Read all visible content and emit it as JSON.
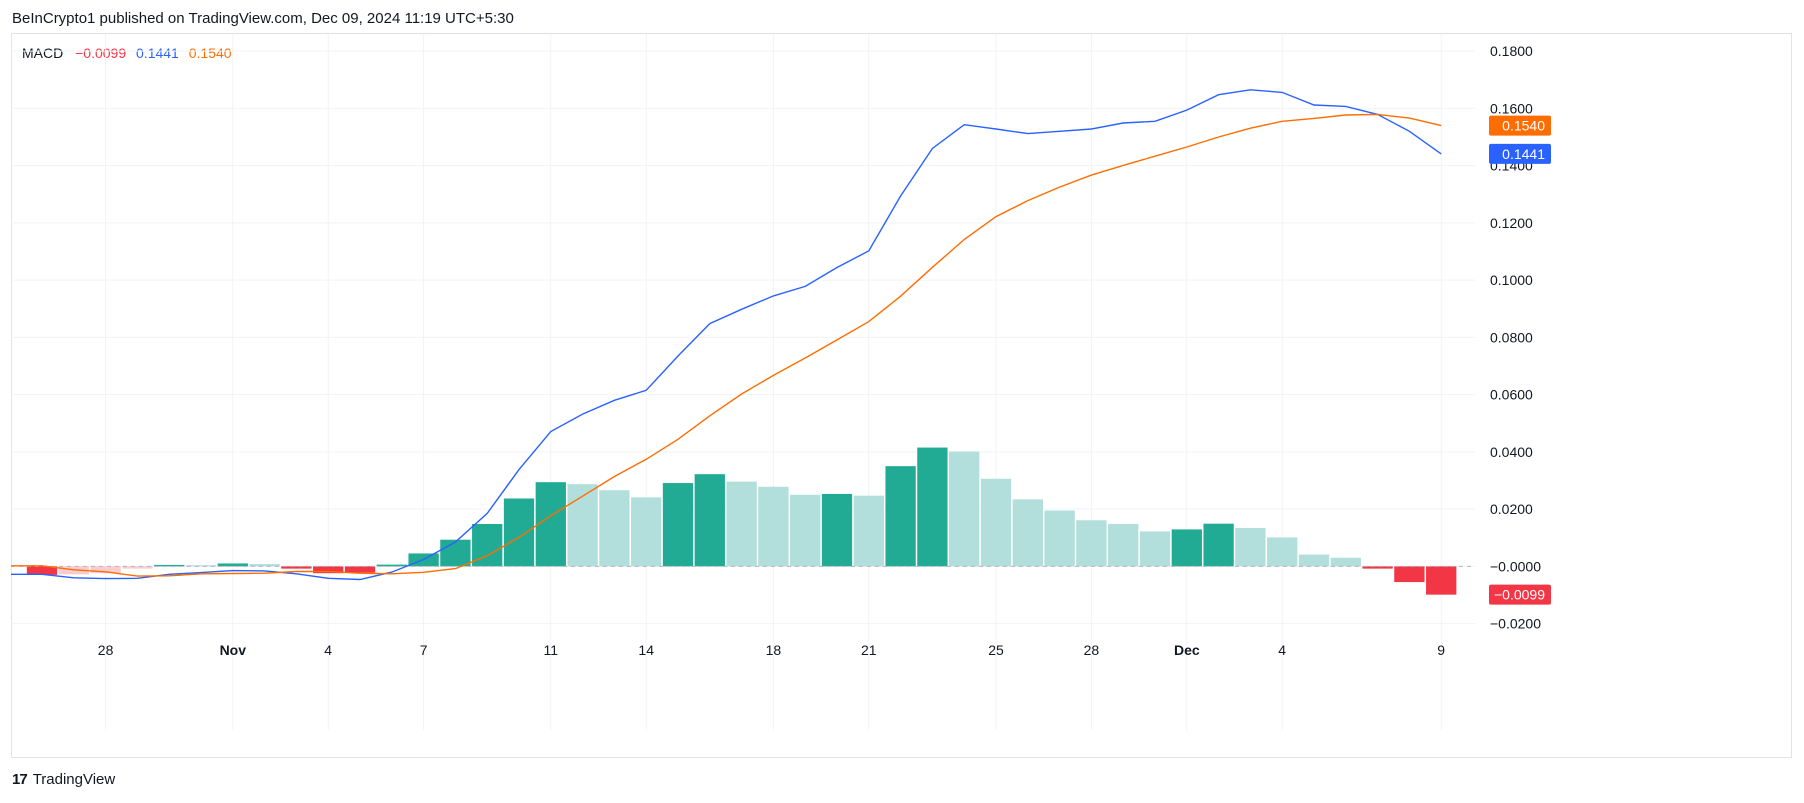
{
  "header": {
    "published": "BeInCrypto1 published on TradingView.com, Dec 09, 2024 11:19 UTC+5:30"
  },
  "legend": {
    "name": "MACD",
    "hist_value": "−0.0099",
    "macd_value": "0.1441",
    "signal_value": "0.1540",
    "hist_color": "#f23645",
    "macd_color": "#2962ff",
    "signal_color": "#ff6d00"
  },
  "footer": {
    "brand": "TradingView",
    "logo_text": "17"
  },
  "chart_data": {
    "type": "bar",
    "title": "",
    "y_ticks": [
      {
        "value": 0.18,
        "label": "0.1800"
      },
      {
        "value": 0.16,
        "label": "0.1600"
      },
      {
        "value": 0.14,
        "label": "0.1400"
      },
      {
        "value": 0.12,
        "label": "0.1200"
      },
      {
        "value": 0.1,
        "label": "0.1000"
      },
      {
        "value": 0.08,
        "label": "0.0800"
      },
      {
        "value": 0.06,
        "label": "0.0600"
      },
      {
        "value": 0.04,
        "label": "0.0400"
      },
      {
        "value": 0.02,
        "label": "0.0200"
      },
      {
        "value": 0.0,
        "label": "−0.0000"
      },
      {
        "value": -0.02,
        "label": "−0.0200"
      }
    ],
    "ylim": [
      -0.0205,
      0.186
    ],
    "x_ticks": [
      {
        "index": 2,
        "label": "28",
        "bold": false
      },
      {
        "index": 6,
        "label": "Nov",
        "bold": true
      },
      {
        "index": 9,
        "label": "4",
        "bold": false
      },
      {
        "index": 12,
        "label": "7",
        "bold": false
      },
      {
        "index": 16,
        "label": "11",
        "bold": false
      },
      {
        "index": 19,
        "label": "14",
        "bold": false
      },
      {
        "index": 23,
        "label": "18",
        "bold": false
      },
      {
        "index": 26,
        "label": "21",
        "bold": false
      },
      {
        "index": 30,
        "label": "25",
        "bold": false
      },
      {
        "index": 33,
        "label": "28",
        "bold": false
      },
      {
        "index": 36,
        "label": "Dec",
        "bold": true
      },
      {
        "index": 39,
        "label": "4",
        "bold": false
      },
      {
        "index": 44,
        "label": "9",
        "bold": false
      }
    ],
    "histogram": {
      "name": "Histogram",
      "values": [
        -0.003,
        -0.0028,
        -0.0024,
        -0.0008,
        0.0005,
        0.0004,
        0.001,
        0.0008,
        -0.0008,
        -0.0024,
        -0.0022,
        0.0006,
        0.0045,
        0.0093,
        0.0148,
        0.0237,
        0.0294,
        0.0287,
        0.0266,
        0.0241,
        0.0291,
        0.0322,
        0.0296,
        0.0278,
        0.025,
        0.0253,
        0.0247,
        0.035,
        0.0415,
        0.0401,
        0.0306,
        0.0234,
        0.0195,
        0.0161,
        0.0148,
        0.0122,
        0.0129,
        0.0149,
        0.0134,
        0.0101,
        0.0041,
        0.003,
        -0.0008,
        -0.0055,
        -0.0099
      ],
      "colors": [
        "#f23645",
        "#fccbcd",
        "#fccbcd",
        "#fccbcd",
        "#22ab94",
        "#b2dfdb",
        "#22ab94",
        "#b2dfdb",
        "#f23645",
        "#f23645",
        "#f23645",
        "#22ab94",
        "#22ab94",
        "#22ab94",
        "#22ab94",
        "#22ab94",
        "#22ab94",
        "#b2dfdb",
        "#b2dfdb",
        "#b2dfdb",
        "#22ab94",
        "#22ab94",
        "#b2dfdb",
        "#b2dfdb",
        "#b2dfdb",
        "#22ab94",
        "#b2dfdb",
        "#22ab94",
        "#22ab94",
        "#b2dfdb",
        "#b2dfdb",
        "#b2dfdb",
        "#b2dfdb",
        "#b2dfdb",
        "#b2dfdb",
        "#b2dfdb",
        "#22ab94",
        "#22ab94",
        "#b2dfdb",
        "#b2dfdb",
        "#b2dfdb",
        "#b2dfdb",
        "#f23645",
        "#f23645",
        "#f23645"
      ]
    },
    "series": [
      {
        "name": "MACD",
        "color": "#2962ff",
        "values": [
          -0.0028,
          -0.004,
          -0.0043,
          -0.0042,
          -0.0028,
          -0.0022,
          -0.0015,
          -0.0016,
          -0.0026,
          -0.0042,
          -0.0046,
          -0.002,
          0.0024,
          0.0085,
          0.0185,
          0.0338,
          0.0471,
          0.0532,
          0.058,
          0.0615,
          0.0735,
          0.0848,
          0.0898,
          0.0945,
          0.0978,
          0.1044,
          0.1102,
          0.1294,
          0.146,
          0.1543,
          0.1528,
          0.1512,
          0.152,
          0.1528,
          0.1549,
          0.1555,
          0.1594,
          0.1648,
          0.1665,
          0.1656,
          0.1612,
          0.1607,
          0.1579,
          0.152,
          0.1441
        ]
      },
      {
        "name": "Signal",
        "color": "#ff6d00",
        "values": [
          0.0002,
          -0.0012,
          -0.0019,
          -0.0034,
          -0.0033,
          -0.0026,
          -0.0025,
          -0.0024,
          -0.0018,
          -0.0018,
          -0.0024,
          -0.0026,
          -0.0021,
          -0.0008,
          0.0037,
          0.0101,
          0.0177,
          0.0245,
          0.0314,
          0.0374,
          0.0444,
          0.0526,
          0.0602,
          0.0667,
          0.0728,
          0.0791,
          0.0855,
          0.0944,
          0.1045,
          0.1142,
          0.1222,
          0.1278,
          0.1325,
          0.1367,
          0.1401,
          0.1433,
          0.1465,
          0.15,
          0.1531,
          0.1555,
          0.1565,
          0.1577,
          0.1579,
          0.1566,
          0.154
        ]
      }
    ],
    "zero_line": 0,
    "price_badges": [
      {
        "value": 0.154,
        "label": "0.1540",
        "color": "#ff6d00"
      },
      {
        "value": 0.1441,
        "label": "0.1441",
        "color": "#2962ff"
      },
      {
        "value": -0.0099,
        "label": "−0.0099",
        "color": "#f23645"
      }
    ],
    "grid": true
  }
}
